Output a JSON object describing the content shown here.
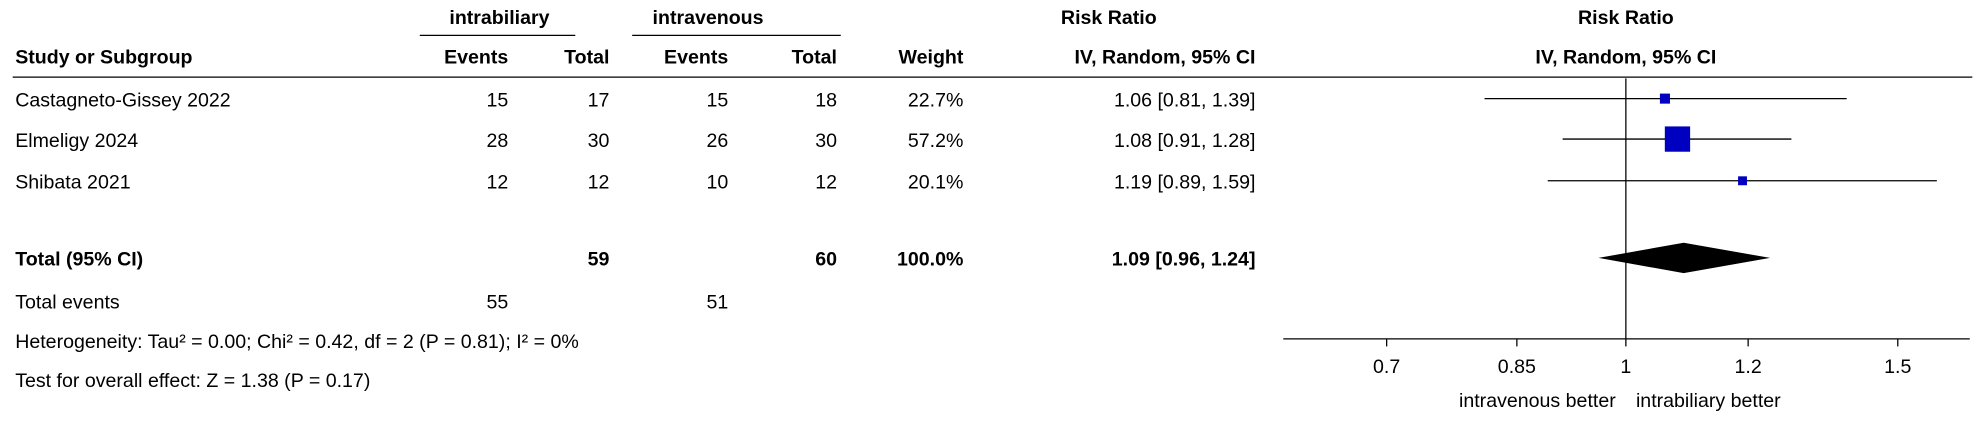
{
  "chart_data": {
    "type": "forest",
    "group_labels": [
      "intrabiliary",
      "intravenous"
    ],
    "effect_header": "Risk Ratio",
    "column_headers": [
      "Study or Subgroup",
      "Events",
      "Total",
      "Events",
      "Total",
      "Weight",
      "IV, Random, 95% CI"
    ],
    "plot_header": "Risk Ratio",
    "plot_subheader": "IV, Random, 95% CI",
    "studies": [
      {
        "name": "Castagneto-Gissey 2022",
        "events1": 15,
        "total1": 17,
        "events2": 15,
        "total2": 18,
        "weight": 22.7,
        "weight_label": "22.7%",
        "rr": 1.06,
        "ci": [
          0.81,
          1.39
        ],
        "ci_label": "1.06 [0.81, 1.39]"
      },
      {
        "name": "Elmeligy 2024",
        "events1": 28,
        "total1": 30,
        "events2": 26,
        "total2": 30,
        "weight": 57.2,
        "weight_label": "57.2%",
        "rr": 1.08,
        "ci": [
          0.91,
          1.28
        ],
        "ci_label": "1.08 [0.91, 1.28]"
      },
      {
        "name": "Shibata 2021",
        "events1": 12,
        "total1": 12,
        "events2": 10,
        "total2": 12,
        "weight": 20.1,
        "weight_label": "20.1%",
        "rr": 1.19,
        "ci": [
          0.89,
          1.59
        ],
        "ci_label": "1.19 [0.89, 1.59]"
      }
    ],
    "total": {
      "name": "Total (95% CI)",
      "total1": 59,
      "total2": 60,
      "weight": 100.0,
      "weight_label": "100.0%",
      "rr": 1.09,
      "ci": [
        0.96,
        1.24
      ],
      "ci_label": "1.09 [0.96, 1.24]"
    },
    "total_events": {
      "name": "Total events",
      "events1": 55,
      "events2": 51
    },
    "heterogeneity": "Heterogeneity: Tau² = 0.00; Chi² = 0.42, df = 2 (P = 0.81); I² = 0%",
    "overall_effect": "Test for overall effect: Z = 1.38 (P = 0.17)",
    "log_scale": true,
    "xlim": [
      0.6,
      1.67
    ],
    "xticks": [
      0.7,
      0.85,
      1,
      1.2,
      1.5
    ],
    "x_axis_labels": [
      "intravenous better",
      "intrabiliary better"
    ],
    "color": "#0000c0"
  }
}
